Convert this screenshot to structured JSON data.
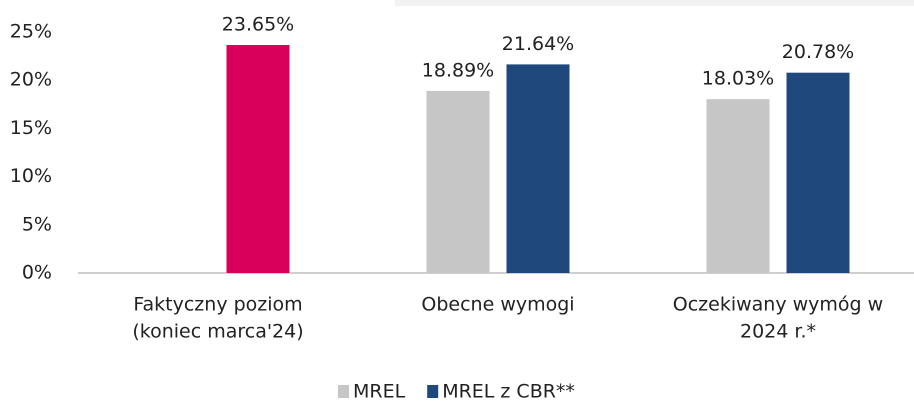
{
  "chart_data": {
    "type": "bar",
    "categories": [
      [
        "Faktyczny poziom",
        "(koniec marca'24)"
      ],
      [
        "Obecne wymogi"
      ],
      [
        "Oczekiwany wymóg w",
        "2024 r.*"
      ]
    ],
    "series": [
      {
        "name": "MREL",
        "color": "#c6c6c6",
        "values": [
          null,
          18.89,
          18.03
        ],
        "value_labels": [
          null,
          "18.89%",
          "18.03%"
        ]
      },
      {
        "name": "MREL z CBR**",
        "color": "#1f497d",
        "colors": [
          "#d9005b",
          "#1f497d",
          "#1f497d"
        ],
        "values": [
          23.65,
          21.64,
          20.78
        ],
        "value_labels": [
          "23.65%",
          "21.64%",
          "20.78%"
        ]
      }
    ],
    "ylim": [
      0,
      25
    ],
    "yticks": [
      {
        "value": 0,
        "label": "0%"
      },
      {
        "value": 5,
        "label": "5%"
      },
      {
        "value": 10,
        "label": "10%"
      },
      {
        "value": 15,
        "label": "15%"
      },
      {
        "value": 20,
        "label": "20%"
      },
      {
        "value": 25,
        "label": "25%"
      }
    ],
    "grid": false
  }
}
